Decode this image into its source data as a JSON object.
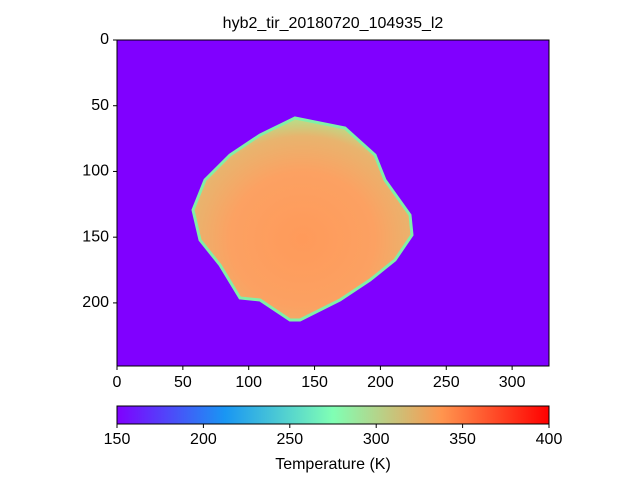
{
  "chart_data": {
    "type": "image",
    "title": "hyb2_tir_20180720_104935_l2",
    "xlim": [
      0,
      328
    ],
    "xticks": [
      0,
      50,
      100,
      150,
      200,
      250,
      300
    ],
    "ylim": [
      0,
      248
    ],
    "yticks": [
      0,
      50,
      100,
      150,
      200
    ],
    "y_inverted": true,
    "colormap": "rainbow",
    "colorbar": {
      "label": "Temperature (K)",
      "orientation": "horizontal",
      "lim": [
        150,
        400
      ],
      "ticks": [
        150,
        200,
        250,
        300,
        350,
        400
      ]
    }
  }
}
